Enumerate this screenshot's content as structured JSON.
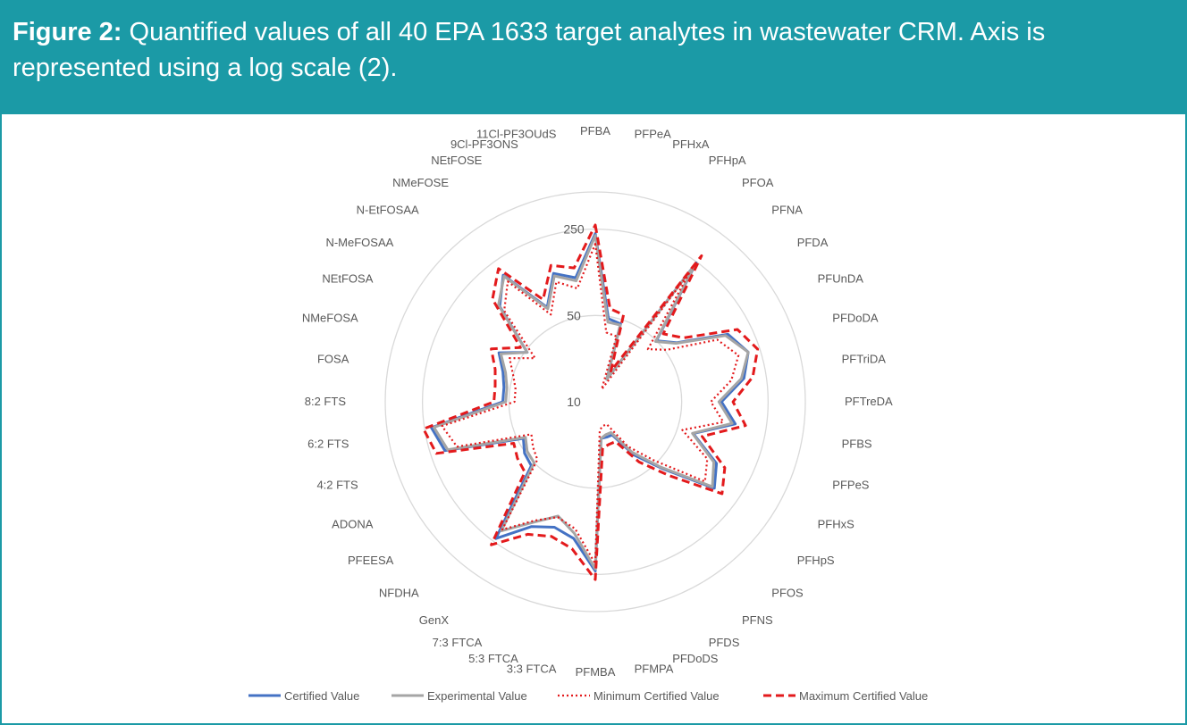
{
  "figure": {
    "label": "Figure 2:",
    "caption": "Quantified values of all 40 EPA 1633 target analytes in wastewater CRM. Axis is represented using a log scale (2)."
  },
  "colors": {
    "header_bg": "#1b9aa6",
    "certified": "#4472c4",
    "experimental": "#a5a5a5",
    "minimum": "#e31a1c",
    "maximum": "#e31a1c",
    "grid": "#d9d9d9"
  },
  "chart_data": {
    "type": "radar",
    "scale": "log",
    "range": [
      10,
      500
    ],
    "ticks": [
      {
        "value": 10,
        "label": "10"
      },
      {
        "value": 50,
        "label": "50"
      },
      {
        "value": 250,
        "label": "250"
      }
    ],
    "categories": [
      "PFBA",
      "PFPeA",
      "PFHxA",
      "PFHpA",
      "PFOA",
      "PFNA",
      "PFDA",
      "PFUnDA",
      "PFDoDA",
      "PFTriDA",
      "PFTreDA",
      "PFBS",
      "PFPeS",
      "PFHxS",
      "PFHpS",
      "PFOS",
      "PFNS",
      "PFDS",
      "PFDoDS",
      "PFMPA",
      "PFMBA",
      "3:3 FTCA",
      "5:3 FTCA",
      "7:3 FTCA",
      "GenX",
      "NFDHA",
      "PFEESA",
      "ADONA",
      "4:2 FTS",
      "6:2 FTS",
      "8:2 FTS",
      "FOSA",
      "NMeFOSA",
      "NEtFOSA",
      "N-MeFOSAA",
      "N-EtFOSAA",
      "NMeFOSE",
      "NEtFOSE",
      "9Cl-PF3ONS",
      "11Cl-PF3OUdS"
    ],
    "series": [
      {
        "name": "Certified Value",
        "style": "solid",
        "values": [
          230,
          48,
          46,
          16,
          245,
          50,
          65,
          160,
          200,
          165,
          105,
          140,
          68,
          126,
          155,
          58,
          34,
          20,
          20,
          20,
          235,
          132,
          117,
          136,
          234,
          54,
          51,
          45,
          190,
          220,
          56,
          56,
          61,
          75,
          48,
          124,
          185,
          72,
          124,
          104
        ]
      },
      {
        "name": "Experimental Value",
        "style": "solid",
        "values": [
          222,
          45,
          45,
          16,
          236,
          49,
          64,
          152,
          200,
          157,
          100,
          132,
          67,
          119,
          148,
          56,
          32,
          19,
          19,
          20,
          226,
          120,
          94,
          124,
          196,
          50,
          48,
          43,
          180,
          210,
          53,
          53,
          58,
          72,
          48,
          128,
          180,
          70,
          118,
          98
        ]
      },
      {
        "name": "Minimum Certified Value",
        "style": "dotted",
        "values": [
          190,
          37,
          36,
          13,
          200,
          40,
          52,
          128,
          165,
          130,
          86,
          112,
          55,
          104,
          125,
          47,
          28,
          16,
          16,
          17,
          205,
          110,
          96,
          120,
          190,
          46,
          42,
          38,
          150,
          180,
          45,
          45,
          50,
          60,
          40,
          110,
          160,
          62,
          105,
          85
        ]
      },
      {
        "name": "Maximum Certified Value",
        "style": "dashed",
        "values": [
          270,
          58,
          55,
          19,
          290,
          60,
          76,
          195,
          240,
          195,
          130,
          170,
          81,
          150,
          185,
          70,
          40,
          23,
          23,
          24,
          275,
          160,
          140,
          160,
          270,
          64,
          60,
          55,
          225,
          255,
          66,
          66,
          71,
          88,
          56,
          150,
          215,
          85,
          145,
          125
        ]
      }
    ],
    "legend": {
      "position": "bottom",
      "entries": [
        "Certified Value",
        "Experimental Value",
        "Minimum Certified Value",
        "Maximum Certified Value"
      ]
    }
  }
}
